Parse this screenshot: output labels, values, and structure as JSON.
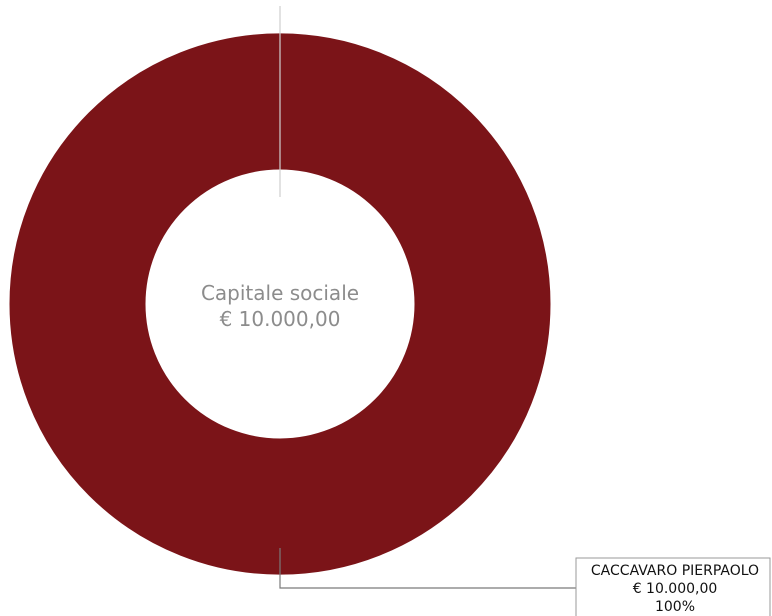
{
  "chart_data": {
    "type": "pie",
    "style": "donut",
    "center_label": {
      "title": "Capitale sociale",
      "total": "€ 10.000,00"
    },
    "slices": [
      {
        "label": "CACCAVARO PIERPAOLO",
        "value": 10000,
        "value_label": "€ 10.000,00",
        "percent": 100,
        "percent_label": "100%",
        "color": "#7b1418"
      }
    ],
    "legend": "none"
  }
}
